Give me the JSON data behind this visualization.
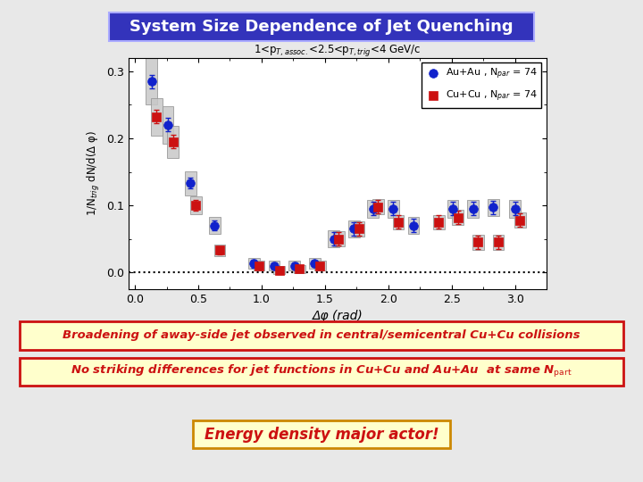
{
  "title": "System Size Dependence of Jet Quenching",
  "title_bg": "#3333bb",
  "title_fg": "white",
  "subtitle": "1<p$_{T,assoc.}$<2.5<p$_{T,trig}$<4 GeV/c",
  "xlabel": "Δφ (rad)",
  "ylabel": "1/N$_{trig}$ dN/d(Δ φ)",
  "xlim": [
    -0.05,
    3.25
  ],
  "ylim": [
    -0.025,
    0.32
  ],
  "yticks": [
    0.0,
    0.1,
    0.2,
    0.3
  ],
  "xticks": [
    0,
    0.5,
    1,
    1.5,
    2,
    2.5,
    3
  ],
  "legend1": "Au+Au , N$_{par}$ = 74",
  "legend2": "Cu+Cu , N$_{par}$ = 74",
  "au_x": [
    0.13,
    0.26,
    0.44,
    0.63,
    0.94,
    1.1,
    1.26,
    1.42,
    1.57,
    1.73,
    1.88,
    2.04,
    2.2,
    2.51,
    2.67,
    2.83,
    3.0
  ],
  "au_y": [
    0.285,
    0.22,
    0.133,
    0.07,
    0.013,
    0.01,
    0.01,
    0.013,
    0.05,
    0.065,
    0.095,
    0.095,
    0.07,
    0.095,
    0.095,
    0.097,
    0.095
  ],
  "au_err": [
    0.01,
    0.01,
    0.008,
    0.007,
    0.006,
    0.005,
    0.005,
    0.005,
    0.01,
    0.01,
    0.01,
    0.01,
    0.01,
    0.01,
    0.01,
    0.01,
    0.01
  ],
  "au_sys": [
    0.035,
    0.028,
    0.018,
    0.013,
    0.008,
    0.007,
    0.007,
    0.008,
    0.013,
    0.013,
    0.013,
    0.013,
    0.013,
    0.013,
    0.013,
    0.013,
    0.013
  ],
  "cu_x": [
    0.13,
    0.26,
    0.44,
    0.63,
    0.94,
    1.1,
    1.26,
    1.42,
    1.57,
    1.73,
    1.88,
    2.04,
    2.36,
    2.51,
    2.67,
    2.83,
    3.0
  ],
  "cu_y": [
    0.232,
    0.195,
    0.1,
    0.033,
    0.01,
    0.003,
    0.005,
    0.01,
    0.05,
    0.065,
    0.098,
    0.075,
    0.075,
    0.082,
    0.045,
    0.045,
    0.078
  ],
  "cu_err": [
    0.01,
    0.01,
    0.008,
    0.006,
    0.005,
    0.005,
    0.005,
    0.005,
    0.01,
    0.01,
    0.01,
    0.01,
    0.01,
    0.01,
    0.01,
    0.01,
    0.01
  ],
  "cu_sys": [
    0.028,
    0.024,
    0.013,
    0.009,
    0.007,
    0.006,
    0.006,
    0.007,
    0.011,
    0.011,
    0.011,
    0.011,
    0.011,
    0.011,
    0.011,
    0.011,
    0.011
  ],
  "text1": "Broadening of away-side jet observed in central/semicentral Cu+Cu collisions",
  "text2_main": "No striking differences for jet functions in Cu+Cu and Au+Au  at same N",
  "text2_sub": "part",
  "text3": "Energy density major actor!",
  "bg_color": "#e8e8e8",
  "plot_bg": "white",
  "au_color": "#1122cc",
  "cu_color": "#cc1111",
  "sys_color": "#c8c8c8",
  "sys_edge": "#999999"
}
